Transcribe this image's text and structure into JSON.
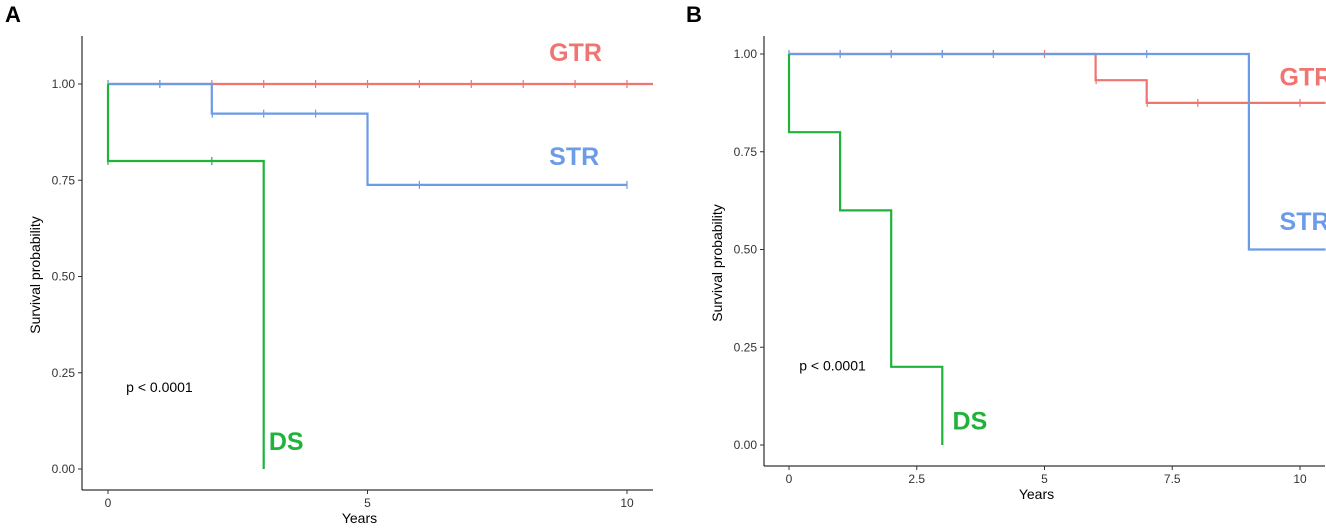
{
  "figure_labels": [
    "A",
    "B"
  ],
  "chart_data": [
    {
      "panel": "A",
      "type": "line",
      "title": "",
      "xlabel": "Years",
      "ylabel": "Survival probability",
      "xlim": [
        -0.5,
        10.5
      ],
      "ylim": [
        0,
        1
      ],
      "xticks": [
        0,
        5,
        10
      ],
      "xtick_labels": [
        "0",
        "5",
        "10"
      ],
      "yticks": [
        0,
        0.25,
        0.5,
        0.75,
        1.0
      ],
      "ytick_labels": [
        "0.00",
        "0.25",
        "0.50",
        "0.75",
        "1.00"
      ],
      "annotation": "p < 0.0001",
      "annotation_at": [
        0.35,
        0.2
      ],
      "series": [
        {
          "name": "GTR",
          "color": "#f07470",
          "x": [
            0,
            10.5
          ],
          "y": [
            1.0,
            1.0
          ],
          "censor_x": [
            0,
            1,
            2,
            3,
            4,
            5,
            6,
            7,
            8,
            9,
            10
          ],
          "label_at": [
            8.5,
            1.06
          ]
        },
        {
          "name": "STR",
          "color": "#6c9be8",
          "x": [
            0,
            2,
            2,
            5,
            5,
            10
          ],
          "y": [
            1.0,
            1.0,
            0.923,
            0.923,
            0.738,
            0.738
          ],
          "censor_x": [
            0,
            1,
            2.01,
            3,
            4,
            6,
            10
          ],
          "label_at": [
            8.5,
            0.79
          ]
        },
        {
          "name": "DS",
          "color": "#1fb33a",
          "x": [
            0,
            0,
            3,
            3
          ],
          "y": [
            1.0,
            0.8,
            0.8,
            0.0
          ],
          "censor_x": [
            0,
            2
          ],
          "label_at": [
            3.1,
            0.05
          ]
        }
      ]
    },
    {
      "panel": "B",
      "type": "line",
      "title": "",
      "xlabel": "Years",
      "ylabel": "Survival probability",
      "xlim": [
        -0.5,
        10.5
      ],
      "ylim": [
        0,
        1
      ],
      "xticks": [
        0,
        2.5,
        5,
        7.5,
        10
      ],
      "xtick_labels": [
        "0",
        "2.5",
        "5",
        "7.5",
        "10"
      ],
      "yticks": [
        0,
        0.25,
        0.5,
        0.75,
        1.0
      ],
      "ytick_labels": [
        "0.00",
        "0.25",
        "0.50",
        "0.75",
        "1.00"
      ],
      "annotation": "p < 0.0001",
      "annotation_at": [
        0.2,
        0.19
      ],
      "series": [
        {
          "name": "GTR",
          "color": "#f07470",
          "x": [
            0,
            6,
            6,
            7,
            7,
            10.5
          ],
          "y": [
            1.0,
            1.0,
            0.933,
            0.933,
            0.875,
            0.875
          ],
          "censor_x": [
            0,
            1,
            2,
            3,
            4,
            5,
            6.01,
            7.01,
            8,
            10
          ],
          "label_at": [
            9.6,
            0.92
          ]
        },
        {
          "name": "STR",
          "color": "#6c9be8",
          "x": [
            0,
            9,
            9,
            10.5
          ],
          "y": [
            1.0,
            1.0,
            0.5,
            0.5
          ],
          "censor_x": [
            0,
            1,
            2,
            3,
            4,
            7
          ],
          "label_at": [
            9.6,
            0.55
          ]
        },
        {
          "name": "DS",
          "color": "#1fb33a",
          "x": [
            0,
            0,
            1,
            1,
            2,
            2,
            3,
            3
          ],
          "y": [
            1.0,
            0.8,
            0.8,
            0.6,
            0.6,
            0.2,
            0.2,
            0.0
          ],
          "censor_x": [],
          "label_at": [
            3.2,
            0.04
          ]
        }
      ]
    }
  ]
}
